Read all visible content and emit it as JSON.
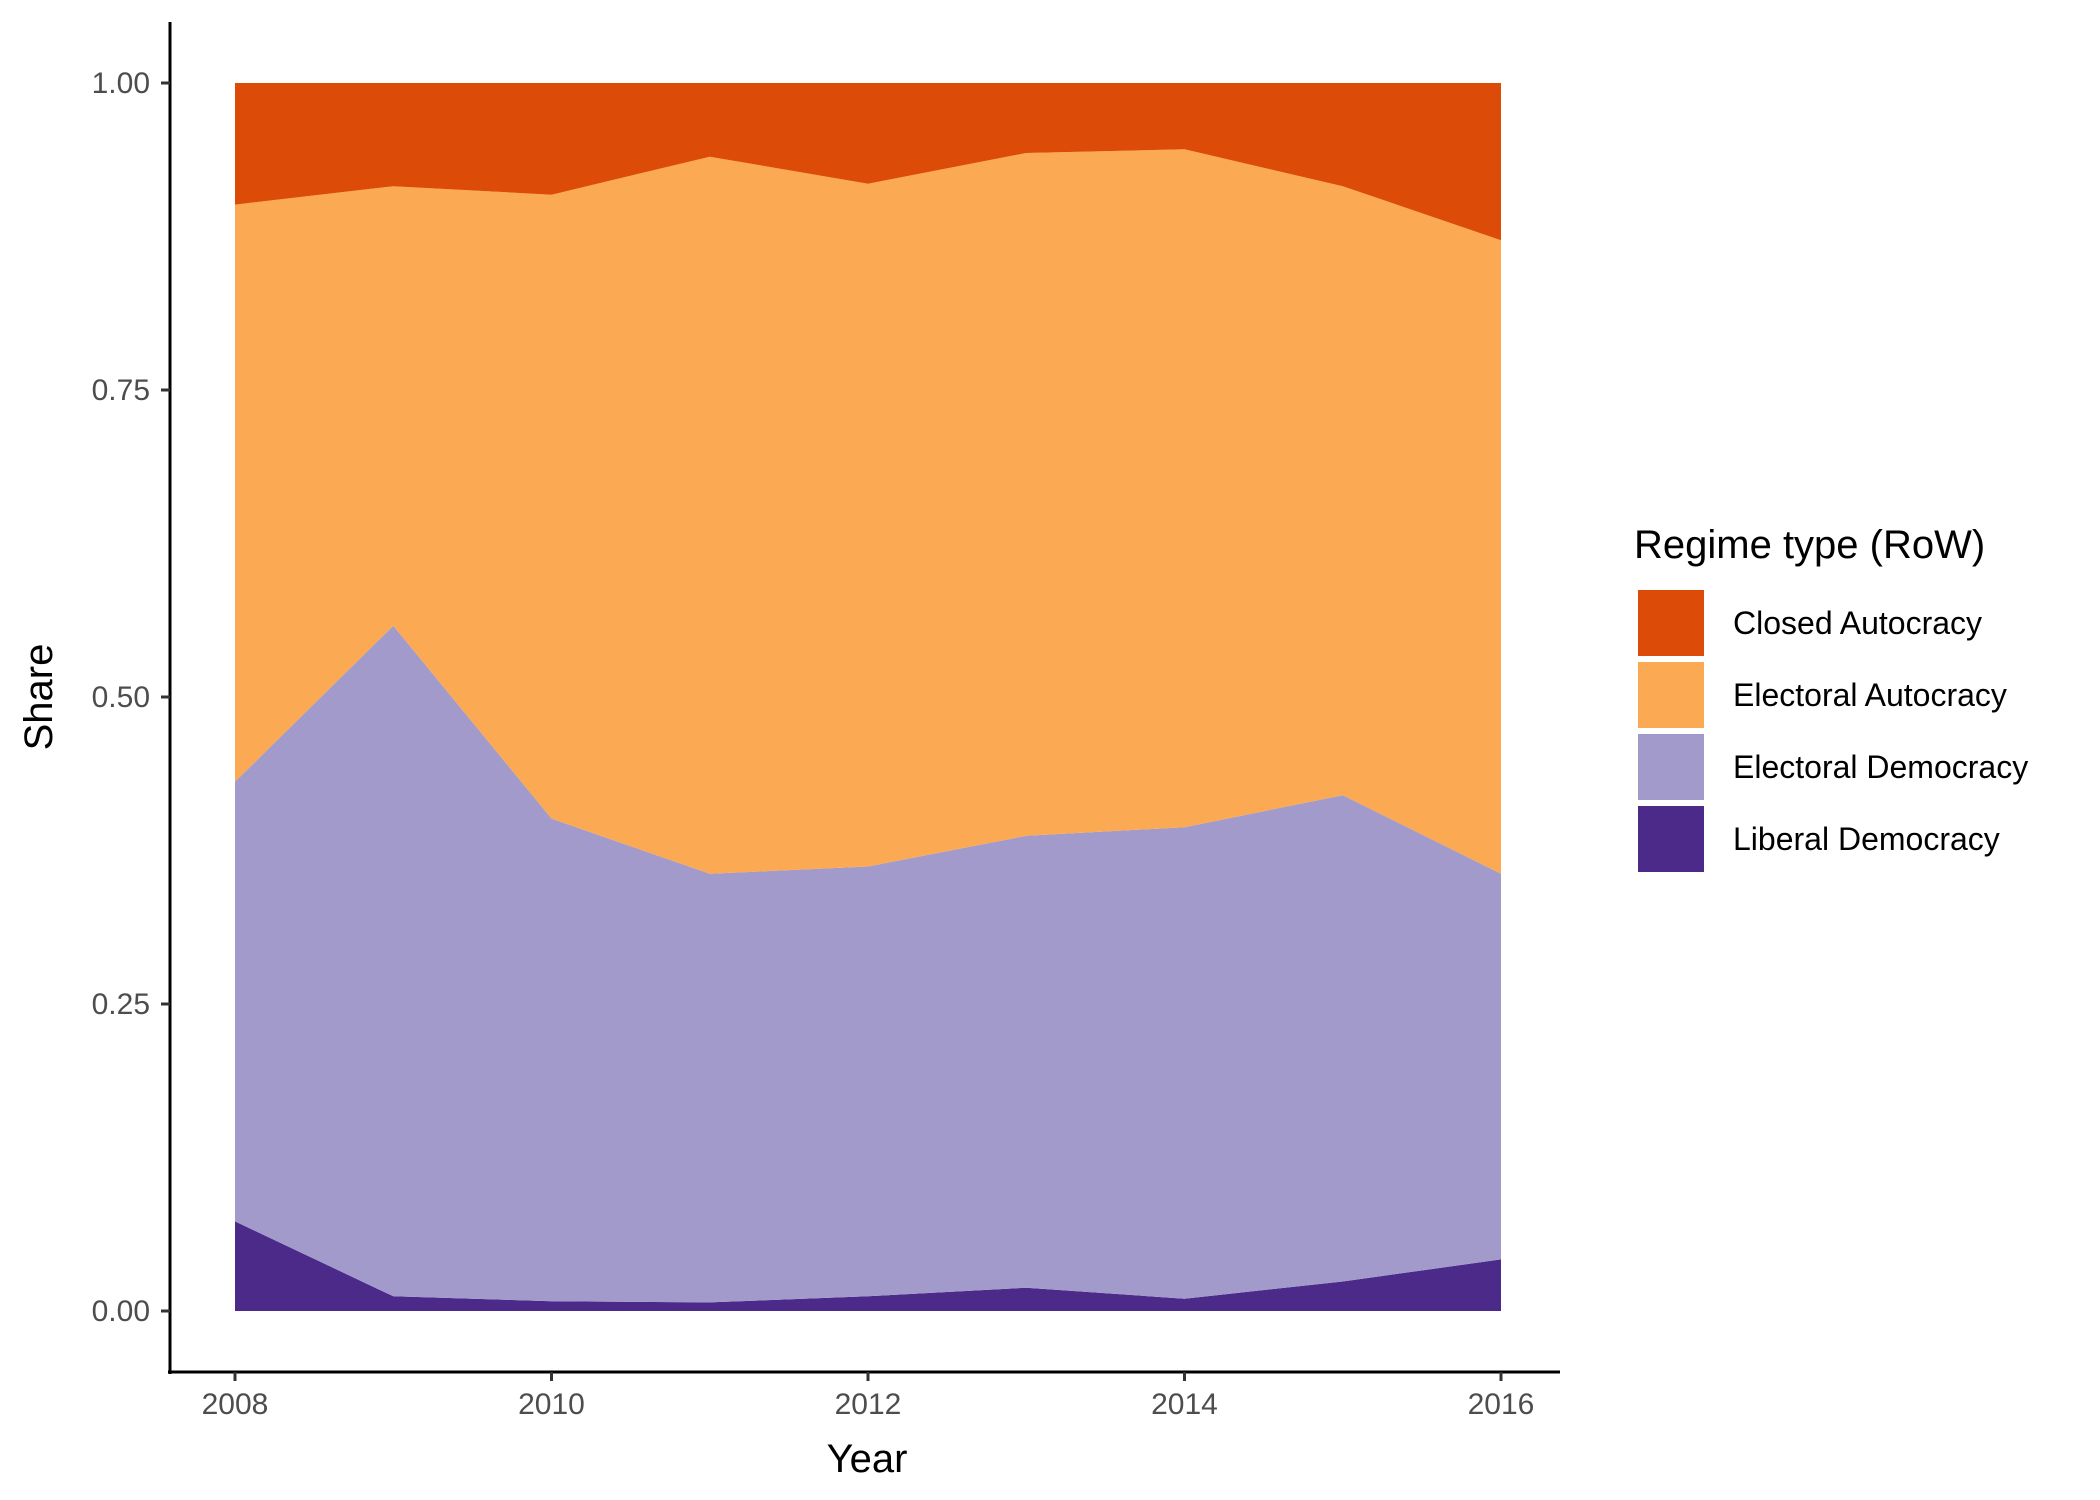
{
  "chart_data": {
    "type": "area",
    "stacked": true,
    "x": [
      2008,
      2009,
      2010,
      2011,
      2012,
      2013,
      2014,
      2015,
      2016
    ],
    "xlabel": "Year",
    "ylabel": "Share",
    "xlim": [
      2008,
      2016
    ],
    "ylim": [
      0,
      1
    ],
    "x_ticks": [
      "2008",
      "2010",
      "2012",
      "2014",
      "2016"
    ],
    "y_ticks": [
      "0.00",
      "0.25",
      "0.50",
      "0.75",
      "1.00"
    ],
    "grid": false,
    "legend": {
      "title": "Regime type (RoW)",
      "position": "right"
    },
    "series": [
      {
        "name": "Liberal Democracy",
        "color": "#4B2A8A",
        "values": [
          0.073,
          0.012,
          0.008,
          0.007,
          0.012,
          0.019,
          0.01,
          0.024,
          0.042
        ]
      },
      {
        "name": "Electoral Democracy",
        "color": "#A29ACA",
        "values": [
          0.358,
          0.546,
          0.393,
          0.349,
          0.35,
          0.368,
          0.384,
          0.396,
          0.314
        ]
      },
      {
        "name": "Electoral Autocracy",
        "color": "#FBA952",
        "values": [
          0.47,
          0.358,
          0.508,
          0.584,
          0.556,
          0.556,
          0.552,
          0.496,
          0.516
        ]
      },
      {
        "name": "Closed Autocracy",
        "color": "#DD4B08",
        "values": [
          0.099,
          0.084,
          0.091,
          0.06,
          0.082,
          0.057,
          0.054,
          0.084,
          0.128
        ]
      }
    ],
    "legend_order": [
      "Closed Autocracy",
      "Electoral Autocracy",
      "Electoral Democracy",
      "Liberal Democracy"
    ]
  }
}
